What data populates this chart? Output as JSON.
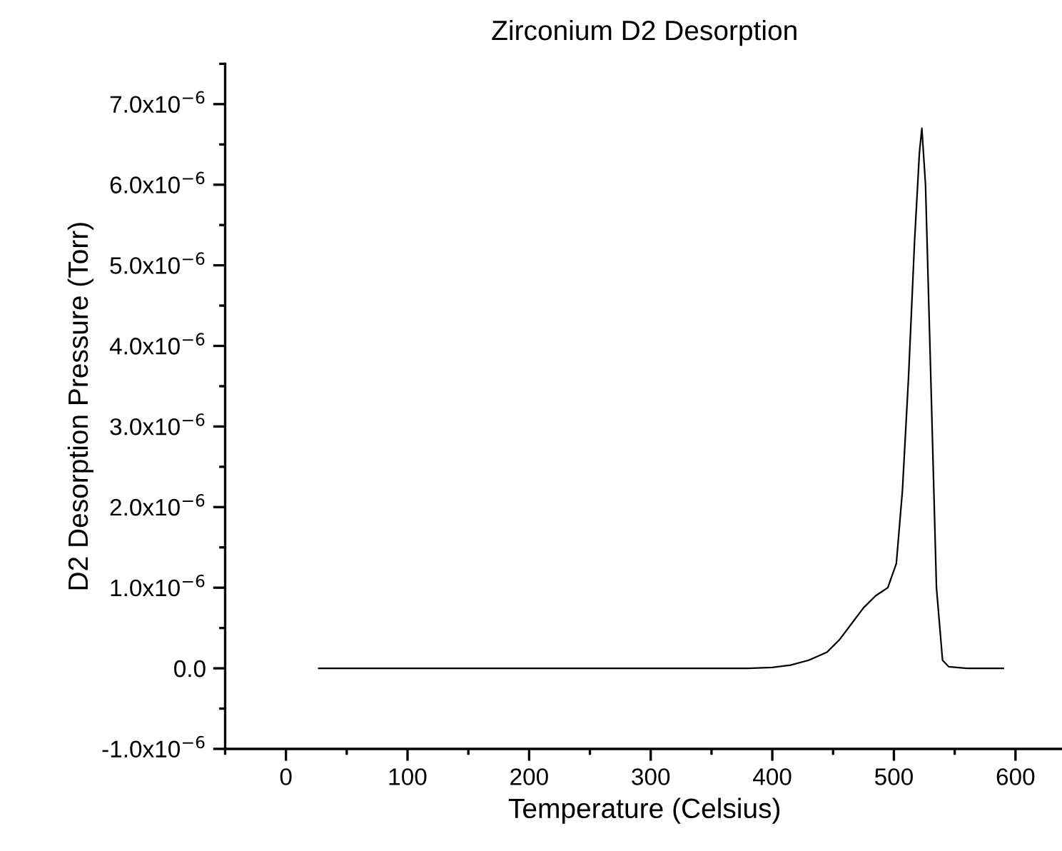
{
  "chart_data": {
    "type": "line",
    "title": "Zirconium D2 Desorption",
    "xlabel": "Temperature (Celsius)",
    "ylabel": "D2 Desorption Pressure (Torr)",
    "x": [
      27,
      100,
      200,
      300,
      380,
      400,
      415,
      430,
      445,
      455,
      465,
      475,
      485,
      495,
      502,
      507,
      512,
      517,
      521,
      523,
      526,
      530,
      535,
      540,
      545,
      560,
      590
    ],
    "series": [
      {
        "color": "#000000",
        "values": [
          0,
          0,
          0,
          0,
          0,
          1e-08,
          4e-08,
          1e-07,
          2e-07,
          3.5e-07,
          5.5e-07,
          7.5e-07,
          9e-07,
          1e-06,
          1.3e-06,
          2.2e-06,
          3.6e-06,
          5.3e-06,
          6.4e-06,
          6.7e-06,
          6e-06,
          3.8e-06,
          1e-06,
          1e-07,
          2e-08,
          0,
          0
        ]
      }
    ],
    "xlim": [
      -50,
      640
    ],
    "xticks": [
      0,
      100,
      200,
      300,
      400,
      500,
      600
    ],
    "ylim": [
      -1e-06,
      7.5e-06
    ],
    "yticks": [
      {
        "value": -1e-06,
        "label": "-1.0x10$^{−6}$"
      },
      {
        "value": 0,
        "label": "0.0"
      },
      {
        "value": 1e-06,
        "label": "1.0x10$^{−6}$"
      },
      {
        "value": 2e-06,
        "label": "2.0x10$^{−6}$"
      },
      {
        "value": 3e-06,
        "label": "3.0x10$^{−6}$"
      },
      {
        "value": 4e-06,
        "label": "4.0x10$^{−6}$"
      },
      {
        "value": 5e-06,
        "label": "5.0x10$^{−6}$"
      },
      {
        "value": 6e-06,
        "label": "6.0x10$^{−6}$"
      },
      {
        "value": 7e-06,
        "label": "7.0x10$^{−6}$"
      }
    ],
    "grid": false,
    "legend": false,
    "marker": "none",
    "line_style": "solid"
  }
}
